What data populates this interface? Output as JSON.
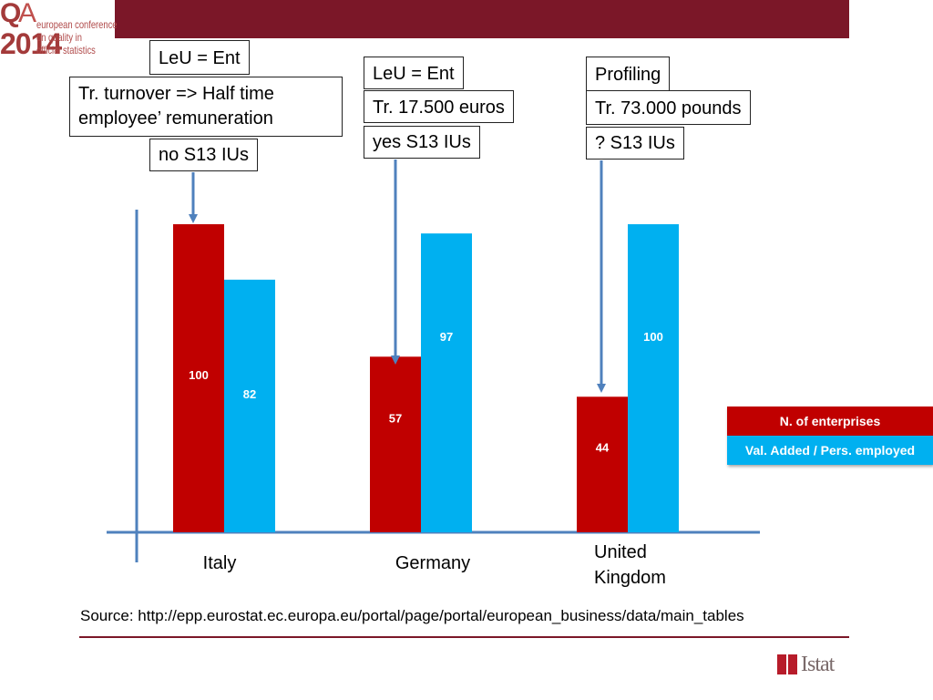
{
  "logo": {
    "mark_q": "Q",
    "mark_a": "A",
    "year": "2014",
    "lines": [
      "european conference",
      "on quality in",
      "official statistics"
    ]
  },
  "annotations": {
    "italy": [
      "LeU = Ent",
      "Tr. turnover => Half time employee’ remuneration",
      "no S13 IUs"
    ],
    "germany": [
      "LeU = Ent",
      "Tr. 17.500 euros",
      "yes S13 IUs"
    ],
    "uk": [
      "Profiling",
      "Tr. 73.000 pounds",
      "? S13 IUs"
    ]
  },
  "chart_data": {
    "type": "bar",
    "categories": [
      "Italy",
      "Germany",
      "United Kingdom"
    ],
    "series": [
      {
        "name": "N. of enterprises",
        "values": [
          100,
          57,
          44
        ],
        "color": "#c00000"
      },
      {
        "name": "Val. Added / Pers. employed",
        "values": [
          82,
          97,
          100
        ],
        "color": "#00b0f0"
      }
    ],
    "ylim": [
      0,
      100
    ],
    "grid": false,
    "legend": "right",
    "title": "",
    "xlabel": "",
    "ylabel": ""
  },
  "source_text": "Source: http://epp.eurostat.ec.europa.eu/portal/page/portal/european_business/data/main_tables",
  "footer_logo": "Istat",
  "colors": {
    "brand": "#7b1728",
    "red": "#c00000",
    "blue": "#00b0f0",
    "axis": "#4f81bd"
  }
}
